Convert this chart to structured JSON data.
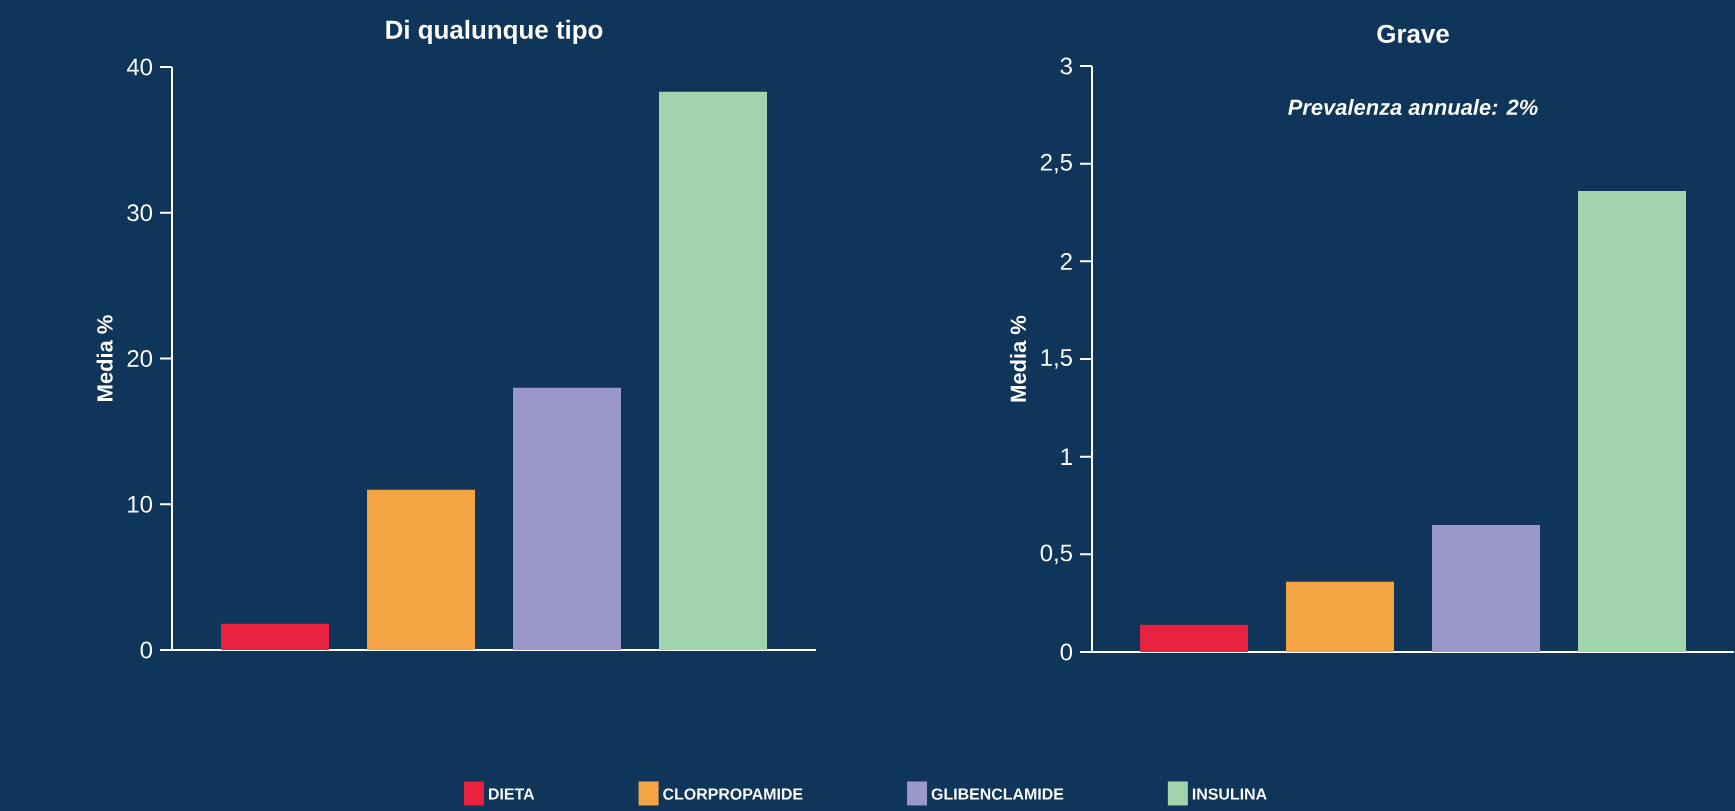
{
  "chart_data": [
    {
      "type": "bar",
      "title": "Di qualunque tipo",
      "ylabel": "Media %",
      "categories": [
        null
      ],
      "series": [
        {
          "name": "DIETA",
          "color": "#e8213f",
          "values": [
            1.8
          ]
        },
        {
          "name": "CLORPROPAMIDE",
          "color": "#f5a443",
          "values": [
            11
          ]
        },
        {
          "name": "GLIBENCLAMIDE",
          "color": "#9b97c9",
          "values": [
            18
          ]
        },
        {
          "name": "INSULINA",
          "color": "#9fd4ac",
          "values": [
            38.3
          ]
        }
      ],
      "ylim": [
        0,
        40
      ],
      "yticks": [
        0,
        10,
        20,
        30,
        40
      ],
      "legend": "bottom"
    },
    {
      "type": "bar",
      "title": "Grave",
      "subtitle": "Prevalenza annuale: 2%",
      "ylabel": "Media %",
      "categories": [
        null
      ],
      "series": [
        {
          "color": "#e8213f",
          "values": [
            0.14
          ]
        },
        {
          "color": "#f5a443",
          "values": [
            0.36
          ]
        },
        {
          "color": "#9b97c9",
          "values": [
            0.65
          ]
        },
        {
          "color": "#9fd4ac",
          "values": [
            2.36
          ]
        }
      ],
      "ylim": [
        0,
        3
      ],
      "yticks": [
        0,
        {
          "value": 0.5,
          "label": "0,5"
        },
        1,
        {
          "value": 1.5,
          "label": "1,5"
        },
        2,
        {
          "value": 2.5,
          "label": "2,5"
        },
        3
      ]
    }
  ]
}
